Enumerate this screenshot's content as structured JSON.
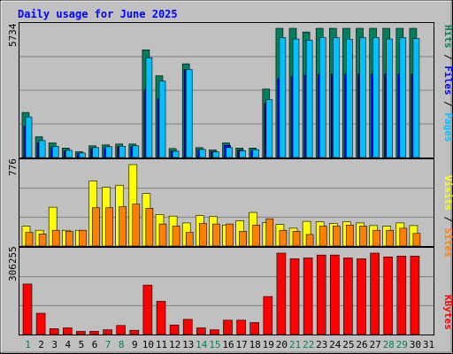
{
  "title": "Daily usage for June 2025",
  "colors": {
    "background": "#c0c0c0",
    "title": "#0000ff",
    "hits": "#00805c",
    "files": "#0000ff",
    "pages": "#00c0ff",
    "visits": "#ffff00",
    "sites": "#ff8000",
    "kbytes": "#ff0000",
    "weekend_day": "#00805c",
    "weekday": "#000000",
    "separator": "#808080"
  },
  "chart_data": [
    {
      "type": "bar",
      "panel": "top",
      "axis_max_label": "5734",
      "ylim": [
        0,
        5734
      ],
      "series_label_parts": [
        "Pages",
        "/",
        "Files",
        "/",
        "Hits"
      ],
      "categories": [
        "1",
        "2",
        "3",
        "4",
        "5",
        "6",
        "7",
        "8",
        "9",
        "10",
        "11",
        "12",
        "13",
        "14",
        "15",
        "16",
        "17",
        "18",
        "19",
        "20",
        "21",
        "22",
        "23",
        "24",
        "25",
        "26",
        "27",
        "28",
        "29",
        "30",
        "31"
      ],
      "series": [
        {
          "name": "Hits",
          "values": [
            2000,
            920,
            650,
            420,
            260,
            520,
            560,
            600,
            600,
            4780,
            3630,
            400,
            4160,
            440,
            340,
            650,
            420,
            420,
            3040,
            5734,
            5734,
            5570,
            5734,
            5734,
            5734,
            5734,
            5734,
            5734,
            5734,
            5734,
            0
          ]
        },
        {
          "name": "Files",
          "values": [
            1400,
            650,
            450,
            300,
            180,
            400,
            430,
            480,
            480,
            3000,
            2600,
            290,
            3900,
            330,
            260,
            540,
            330,
            320,
            2400,
            3500,
            3600,
            3650,
            3700,
            3700,
            3700,
            3700,
            3700,
            3700,
            3700,
            3700,
            0
          ]
        },
        {
          "name": "Pages",
          "values": [
            1800,
            750,
            500,
            320,
            200,
            440,
            480,
            500,
            520,
            4430,
            3390,
            280,
            3910,
            360,
            250,
            440,
            300,
            350,
            2570,
            5320,
            5260,
            5210,
            5320,
            5320,
            5250,
            5320,
            5320,
            5260,
            5320,
            5280,
            0
          ]
        }
      ]
    },
    {
      "type": "bar",
      "panel": "middle",
      "axis_max_label": "776",
      "ylim": [
        0,
        776
      ],
      "series_label_parts": [
        "Sites",
        "/",
        "Visits"
      ],
      "categories": [
        "1",
        "2",
        "3",
        "4",
        "5",
        "6",
        "7",
        "8",
        "9",
        "10",
        "11",
        "12",
        "13",
        "14",
        "15",
        "16",
        "17",
        "18",
        "19",
        "20",
        "21",
        "22",
        "23",
        "24",
        "25",
        "26",
        "27",
        "28",
        "29",
        "30",
        "31"
      ],
      "series": [
        {
          "name": "Visits",
          "values": [
            190,
            150,
            370,
            150,
            150,
            620,
            560,
            580,
            776,
            500,
            300,
            285,
            220,
            290,
            280,
            200,
            240,
            320,
            225,
            205,
            170,
            235,
            230,
            215,
            230,
            220,
            195,
            190,
            220,
            195,
            0
          ]
        },
        {
          "name": "Sites",
          "values": [
            130,
            115,
            150,
            140,
            150,
            365,
            365,
            375,
            400,
            360,
            210,
            190,
            130,
            215,
            210,
            210,
            140,
            200,
            260,
            150,
            140,
            110,
            190,
            190,
            200,
            190,
            150,
            150,
            170,
            120,
            0
          ]
        }
      ]
    },
    {
      "type": "bar",
      "panel": "bottom",
      "axis_max_label": "306255",
      "ylim": [
        0,
        306255
      ],
      "series_label_parts": [
        "KBytes"
      ],
      "categories": [
        "1",
        "2",
        "3",
        "4",
        "5",
        "6",
        "7",
        "8",
        "9",
        "10",
        "11",
        "12",
        "13",
        "14",
        "15",
        "16",
        "17",
        "18",
        "19",
        "20",
        "21",
        "22",
        "23",
        "24",
        "25",
        "26",
        "27",
        "28",
        "29",
        "30",
        "31"
      ],
      "series": [
        {
          "name": "KBytes",
          "values": [
            190000,
            80000,
            22000,
            25000,
            12000,
            12000,
            18000,
            34000,
            16000,
            186000,
            125000,
            36000,
            57000,
            25000,
            18000,
            54000,
            54000,
            45000,
            143000,
            306255,
            285000,
            288000,
            299000,
            299000,
            288000,
            285000,
            306255,
            292000,
            295000,
            295000,
            0
          ]
        }
      ]
    }
  ],
  "day_labels": [
    "1",
    "2",
    "3",
    "4",
    "5",
    "6",
    "7",
    "8",
    "9",
    "10",
    "11",
    "12",
    "13",
    "14",
    "15",
    "16",
    "17",
    "18",
    "19",
    "20",
    "21",
    "22",
    "23",
    "24",
    "25",
    "26",
    "27",
    "28",
    "29",
    "30",
    "31"
  ],
  "weekend_days": [
    "1",
    "7",
    "8",
    "14",
    "15",
    "21",
    "22",
    "28",
    "29"
  ]
}
